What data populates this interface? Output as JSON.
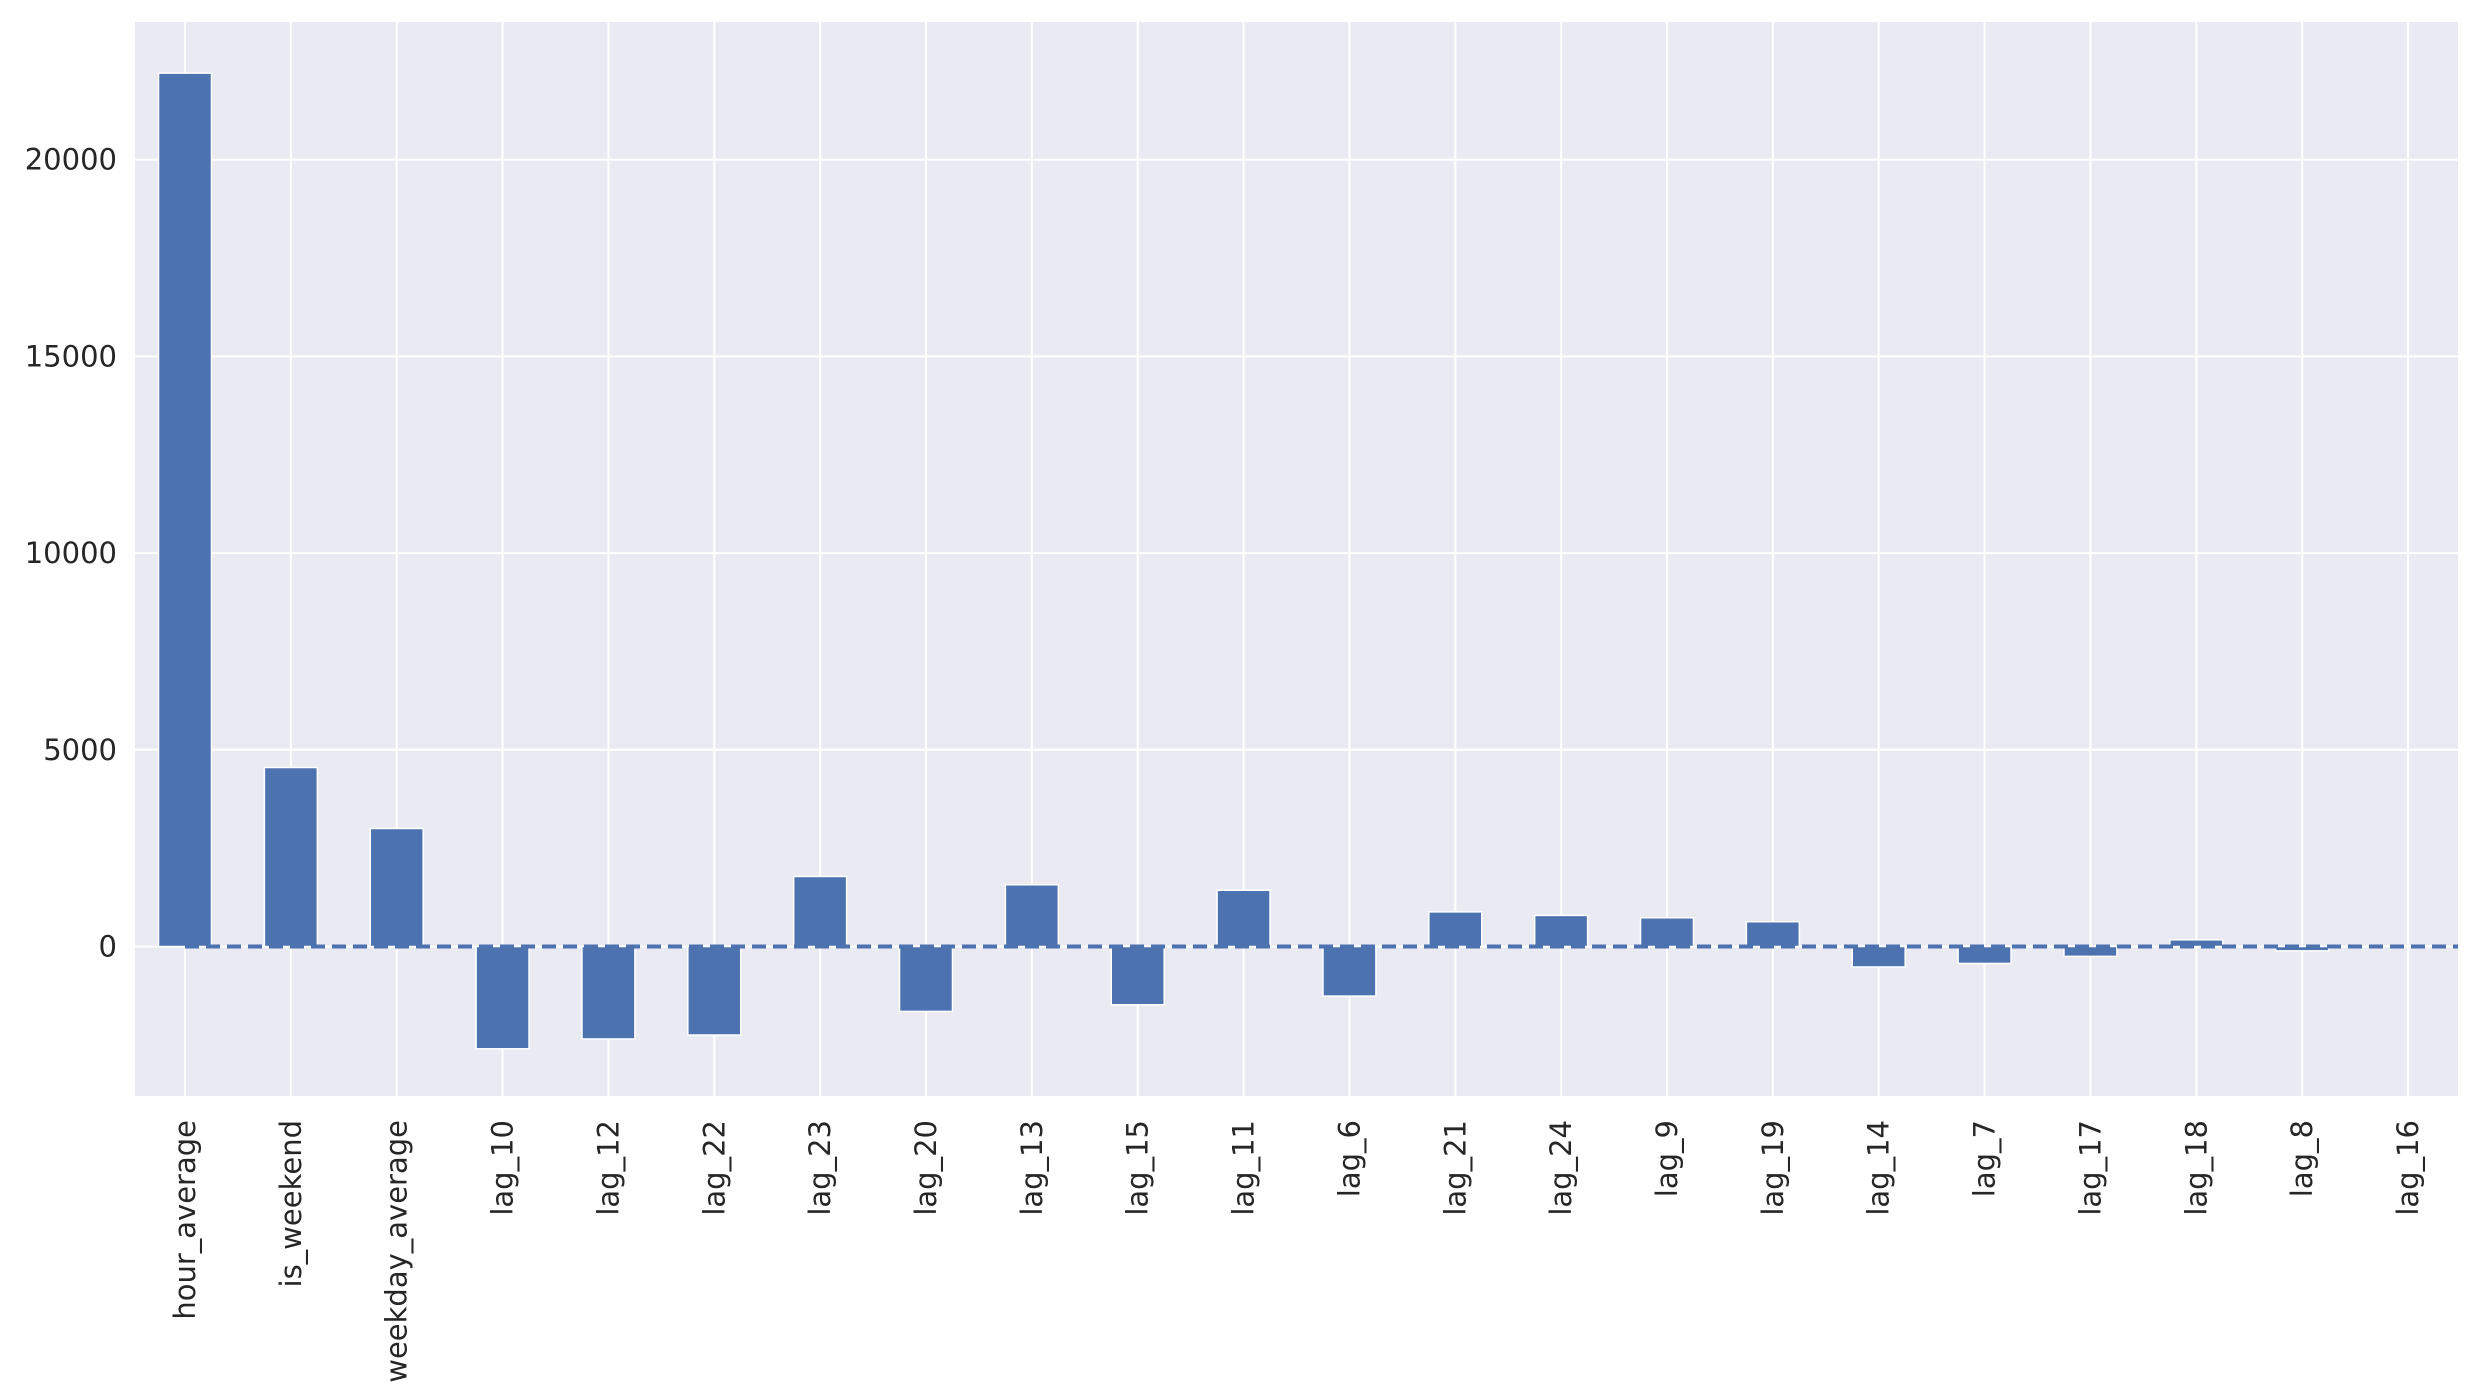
{
  "chart_data": {
    "type": "bar",
    "title": "",
    "xlabel": "",
    "ylabel": "",
    "categories": [
      "hour_average",
      "is_weekend",
      "weekday_average",
      "lag_10",
      "lag_12",
      "lag_22",
      "lag_23",
      "lag_20",
      "lag_13",
      "lag_15",
      "lag_11",
      "lag_6",
      "lag_21",
      "lag_24",
      "lag_9",
      "lag_19",
      "lag_14",
      "lag_7",
      "lag_17",
      "lag_18",
      "lag_8",
      "lag_16"
    ],
    "values": [
      22200,
      4550,
      3000,
      -2600,
      -2350,
      -2250,
      1780,
      -1650,
      1570,
      -1480,
      1430,
      -1260,
      880,
      790,
      730,
      630,
      -520,
      -430,
      -250,
      170,
      -110,
      20
    ],
    "ylim": [
      -3800,
      23500
    ],
    "yticks": [
      0,
      5000,
      10000,
      15000,
      20000
    ],
    "reference_line": {
      "y": 0,
      "style": "dashed"
    },
    "grid": true,
    "legend": "none",
    "colors": {
      "bar": "#4c72b0",
      "background": "#eaeaf2",
      "grid": "#ffffff",
      "tick_text": "#262626"
    }
  }
}
